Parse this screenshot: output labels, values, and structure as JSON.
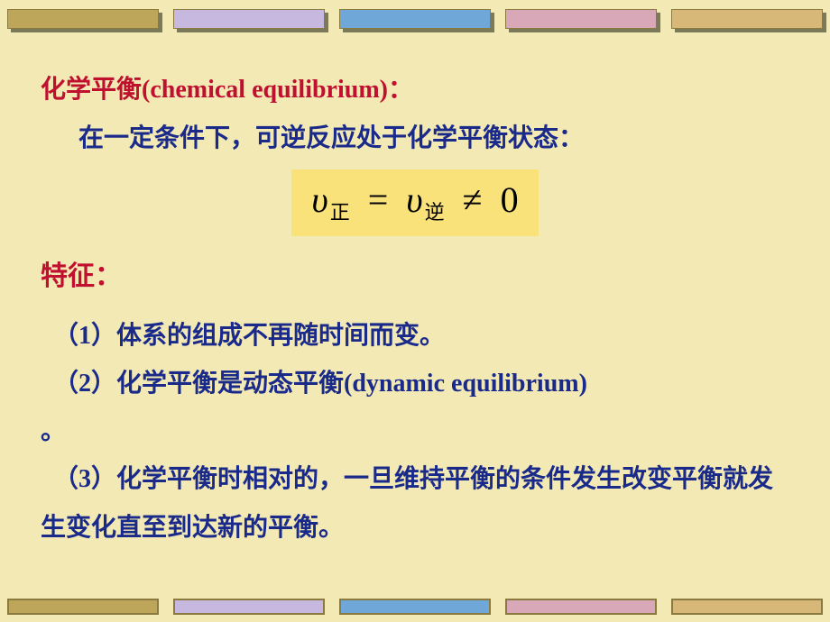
{
  "decor": {
    "top_bar_colors": [
      "#bda65a",
      "#c7b8e0",
      "#6fa8d8",
      "#d8a8b8",
      "#d8b878"
    ],
    "bottom_bar_colors": [
      "#bda65a",
      "#c7b8e0",
      "#6fa8d8",
      "#d8a8b8",
      "#d8b878"
    ],
    "background_color": "#f3e9b4"
  },
  "heading": {
    "text": "化学平衡(chemical equilibrium)：",
    "color": "#c01030",
    "fontsize": 28
  },
  "intro": {
    "text": "在一定条件下，可逆反应处于化学平衡状态：",
    "color": "#1a2a8a"
  },
  "equation": {
    "v1_symbol": "υ",
    "v1_sub": "正",
    "eq": "=",
    "v2_symbol": "υ",
    "v2_sub": "逆",
    "neq": "≠",
    "zero": "0",
    "bg_color": "#fae27a"
  },
  "features": {
    "title": "特征：",
    "title_color": "#c01030",
    "items": [
      "（1）体系的组成不再随时间而变。",
      "（2）化学平衡是动态平衡(dynamic equilibrium)",
      "（3）化学平衡时相对的，一旦维持平衡的条件发生改变平衡就发生变化直至到达新的平衡。"
    ],
    "dangle": "。"
  }
}
